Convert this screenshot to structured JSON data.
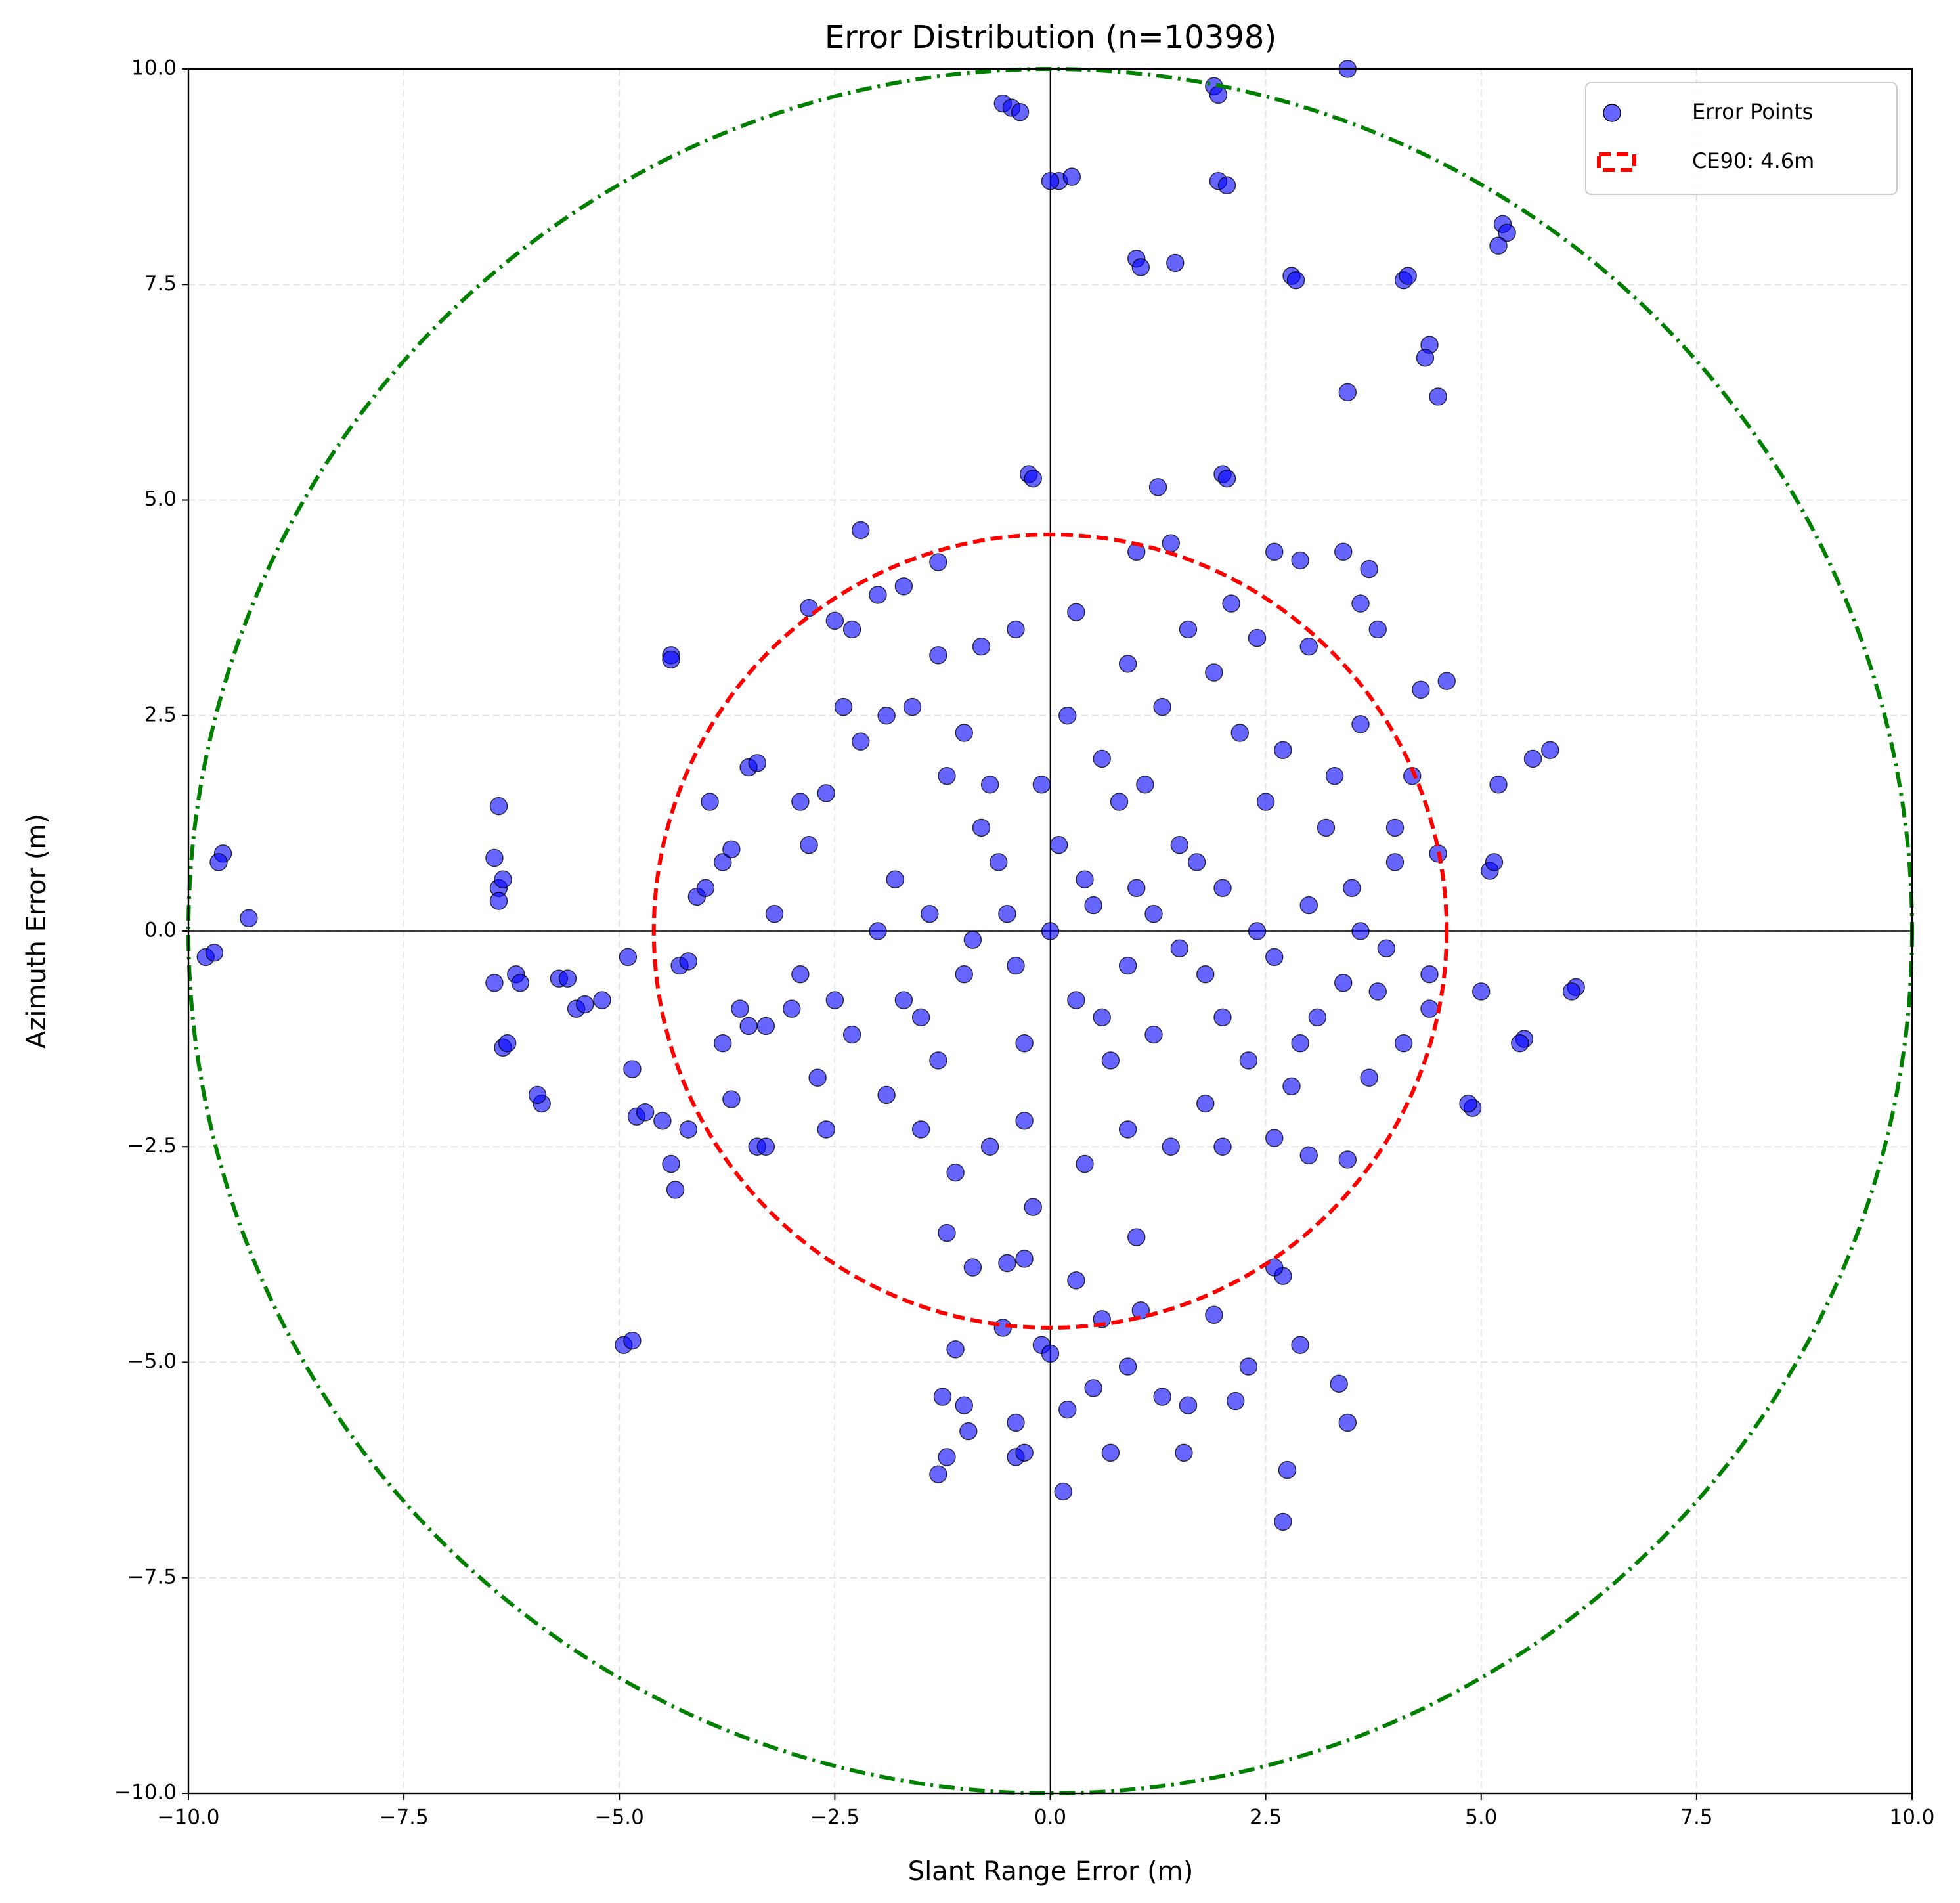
{
  "chart_data": {
    "type": "scatter",
    "title": "Error Distribution (n=10398)",
    "x_label": "Slant Range Error (m)",
    "y_label": "Azimuth Error (m)",
    "xlim": [
      -10,
      10
    ],
    "ylim": [
      -10,
      10
    ],
    "xticks": [
      {
        "value": -10,
        "label": "−10.0"
      },
      {
        "value": -7.5,
        "label": "−7.5"
      },
      {
        "value": -5,
        "label": "−5.0"
      },
      {
        "value": -2.5,
        "label": "−2.5"
      },
      {
        "value": 0,
        "label": "0.0"
      },
      {
        "value": 2.5,
        "label": "2.5"
      },
      {
        "value": 5,
        "label": "5.0"
      },
      {
        "value": 7.5,
        "label": "7.5"
      },
      {
        "value": 10,
        "label": "10.0"
      }
    ],
    "yticks": [
      {
        "value": -10,
        "label": "−10.0"
      },
      {
        "value": -7.5,
        "label": "−7.5"
      },
      {
        "value": -5,
        "label": "−5.0"
      },
      {
        "value": -2.5,
        "label": "−2.5"
      },
      {
        "value": 0,
        "label": "0.0"
      },
      {
        "value": 2.5,
        "label": "2.5"
      },
      {
        "value": 5,
        "label": "5.0"
      },
      {
        "value": 7.5,
        "label": "7.5"
      },
      {
        "value": 10,
        "label": "10.0"
      }
    ],
    "grid": true,
    "zero_lines": true,
    "legend": "upper right",
    "series": [
      {
        "name": "Error Points",
        "color": "#0000ff",
        "x": [
          -9.8,
          -9.7,
          -9.6,
          -9.65,
          -9.3,
          -6.4,
          -6.45,
          -6.4,
          -6.35,
          -6.4,
          -6.45,
          -6.2,
          -6.15,
          -6.35,
          -6.3,
          -5.9,
          -5.95,
          -5.7,
          -5.6,
          -5.5,
          -5.4,
          -5.2,
          -4.9,
          -4.85,
          -4.8,
          -4.7,
          -4.95,
          -4.85,
          -4.5,
          -4.4,
          -4.4,
          -4.4,
          -4.35,
          -4.2,
          -4.3,
          -4.2,
          -4.1,
          -4,
          -3.95,
          -3.8,
          -3.7,
          -3.5,
          -3.4,
          -3.4,
          -3.3,
          -3.8,
          -3.6,
          -3.7,
          -3.5,
          -2.8,
          -2.3,
          -2.2,
          -1.7,
          -1.3,
          -0.55,
          -0.45,
          -0.35,
          0.1,
          0.25,
          1,
          1.05,
          1.45,
          1.9,
          1.95,
          1.95,
          2.05,
          2.8,
          2.85,
          3.45,
          4.1,
          4.15,
          4.4,
          4.35,
          4.5,
          3.45,
          5.25,
          5.3,
          5.2,
          -0.25,
          -0.2,
          2,
          2.05,
          1.25,
          0,
          6.1,
          6.05,
          5.5,
          5.45,
          5,
          4.9,
          4.85,
          5.8,
          5.6,
          5.2,
          5.1,
          5.15,
          -1.3,
          -1.2,
          -1,
          -1.25,
          -1.1,
          -0.95,
          -0.4,
          -0.3,
          -0.4,
          -0.55,
          -0.1,
          0,
          0.2,
          0.15,
          0.5,
          0.7,
          0.9,
          1,
          1.05,
          1.3,
          1.6,
          1.55,
          1.9,
          2.15,
          2.3,
          2.7,
          2.6,
          2.75,
          2.7,
          2.9,
          3.35,
          3.45,
          3.45,
          3.7,
          -0.3,
          -0.5,
          -0.9,
          -1.2,
          0.3,
          0.6,
          0,
          0.5,
          -0.5,
          1,
          -1,
          1.5,
          -1.5,
          2,
          -2,
          0.3,
          0.8,
          -0.8,
          1.2,
          -1.2,
          2.5,
          -2.5,
          0.2,
          -0.3,
          1.8,
          -1.8,
          2.2,
          -2.2,
          3,
          3.2,
          3.5,
          3.8,
          4,
          4.2,
          4.4,
          4.3,
          3,
          2.6,
          2.9,
          3.4,
          3.6,
          3.7,
          1,
          1.4,
          0.3,
          -0.4,
          -0.8,
          -1.3,
          -1.9,
          -2.4,
          -2.6,
          -2.8,
          -2.9,
          -2.7,
          -2.6,
          -2.3,
          -1.9,
          -1.5,
          -1.1,
          -0.7,
          -0.2,
          0.4,
          0.9,
          1.4,
          1.8,
          2.3,
          2.8,
          3.1,
          2.6,
          2,
          1.5,
          0.7,
          -0.3,
          -0.9,
          -1.4,
          0.1,
          0.6,
          1.3,
          1.9,
          2.4,
          -0.1,
          -0.6,
          1.1,
          2.7,
          3.3,
          3.6,
          4,
          4.5,
          4.6,
          3.9,
          3.4,
          3.8,
          2.1,
          1.6,
          0.9,
          -1.6,
          -2,
          -2.5,
          -1,
          -3,
          -3.3,
          -3.2,
          -2.9,
          -1.7,
          -1.3,
          0.4,
          0.9,
          1.7,
          2.4,
          -0.4,
          0.6,
          1.2,
          -0.7,
          2.9,
          3.6,
          4.1,
          4.4,
          3,
          2.6,
          2
        ],
        "values": [
          -0.3,
          -0.25,
          0.9,
          0.8,
          0.15,
          1.45,
          0.85,
          0.5,
          0.6,
          0.35,
          -0.6,
          -0.5,
          -0.6,
          -1.35,
          -1.3,
          -2,
          -1.9,
          -0.55,
          -0.55,
          -0.9,
          -0.85,
          -0.8,
          -0.3,
          -1.6,
          -2.15,
          -2.1,
          -4.8,
          -4.75,
          -2.2,
          3.2,
          3.15,
          -2.7,
          -3,
          -2.3,
          -0.4,
          -0.35,
          0.4,
          0.5,
          1.5,
          0.8,
          0.95,
          1.9,
          1.95,
          -2.5,
          -2.5,
          -1.3,
          -0.9,
          -1.95,
          -1.1,
          3.75,
          3.5,
          4.65,
          4,
          4.28,
          9.6,
          9.55,
          9.5,
          8.7,
          8.75,
          7.8,
          7.7,
          7.75,
          9.8,
          9.7,
          8.7,
          8.65,
          7.6,
          7.55,
          10,
          7.55,
          7.6,
          6.8,
          6.65,
          6.2,
          6.25,
          8.2,
          8.1,
          7.95,
          5.3,
          5.25,
          5.3,
          5.25,
          5.15,
          8.7,
          -0.65,
          -0.7,
          -1.25,
          -1.3,
          -0.7,
          -2.05,
          -2,
          2.1,
          2,
          1.7,
          0.7,
          0.8,
          -6.3,
          -6.1,
          -5.5,
          -5.4,
          -4.85,
          -5.8,
          -6.1,
          -6.05,
          -5.7,
          -4.6,
          -4.8,
          -4.9,
          -5.55,
          -6.5,
          -5.3,
          -6.05,
          -5.05,
          -3.55,
          -4.4,
          -5.4,
          -5.5,
          -6.05,
          -4.45,
          -5.45,
          -5.05,
          -4,
          -3.9,
          -6.25,
          -6.85,
          -4.8,
          -5.25,
          -5.7,
          -2.65,
          -1.7,
          -3.8,
          -3.85,
          -3.9,
          -3.5,
          -4.05,
          -4.5,
          0,
          0.3,
          0.2,
          0.5,
          -0.5,
          1,
          -1,
          0.5,
          0,
          -0.8,
          1.5,
          1.2,
          -1.2,
          1.8,
          1.5,
          -0.8,
          2.5,
          -2.2,
          -0.5,
          0.6,
          2.3,
          2.2,
          0.3,
          1.2,
          0.5,
          -0.7,
          0.8,
          1.8,
          -0.5,
          2.8,
          3.3,
          4.4,
          4.3,
          4.4,
          3.8,
          4.2,
          4.4,
          4.5,
          3.7,
          3.5,
          3.3,
          3.2,
          2.5,
          2.6,
          1.6,
          1,
          -0.5,
          -1.7,
          -2.3,
          -1.2,
          -1.9,
          -2.3,
          -2.8,
          -2.5,
          -3.2,
          -2.7,
          -2.3,
          -2.5,
          -2,
          -1.5,
          -1.8,
          -1,
          -0.3,
          -1,
          -0.2,
          -1.5,
          -1.3,
          -0.1,
          0.2,
          1,
          2,
          2.6,
          3,
          3.4,
          1.7,
          0.8,
          1.7,
          2.1,
          1.8,
          2.4,
          1.2,
          0.9,
          2.9,
          -0.2,
          -0.6,
          3.5,
          3.8,
          3.5,
          3.1,
          2.6,
          3.9,
          3.6,
          2.3,
          -0.9,
          -1.1,
          0.2,
          1.5,
          -0.8,
          -1.5,
          0.6,
          -0.4,
          0.8,
          0,
          -0.4,
          -1,
          0.2,
          1.7,
          -1.3,
          0,
          -1.3,
          -0.9,
          -2.6,
          -2.4,
          -2.5
        ]
      }
    ],
    "circles": [
      {
        "name": "CE90: 4.6m",
        "radius": 4.6,
        "color": "#ff0000",
        "style": "dashed"
      },
      {
        "radius": 10,
        "color": "#008000",
        "style": "dashdot"
      }
    ]
  }
}
